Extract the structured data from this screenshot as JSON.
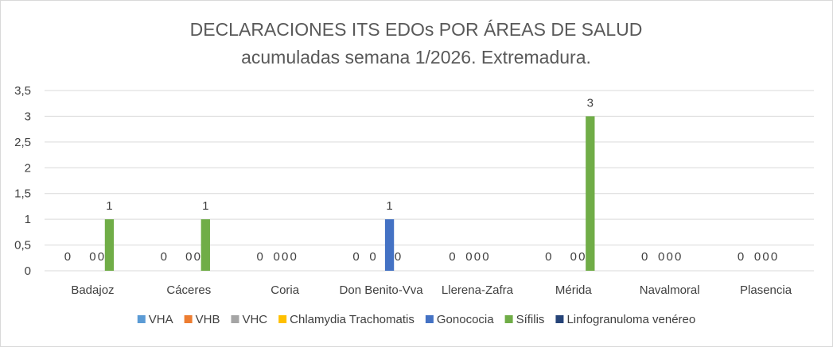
{
  "chart_data": {
    "type": "bar",
    "title": "DECLARACIONES ITS EDOs POR ÁREAS DE SALUD",
    "subtitle": "acumuladas semana 1/2026. Extremadura.",
    "categories": [
      "Badajoz",
      "Cáceres",
      "Coria",
      "Don Benito-Vva",
      "Llerena-Zafra",
      "Mérida",
      "Navalmoral",
      "Plasencia"
    ],
    "ylim": [
      0,
      3.5
    ],
    "yticks": [
      "0",
      "0,5",
      "1",
      "1,5",
      "2",
      "2,5",
      "3",
      "3,5"
    ],
    "grid": true,
    "legend_position": "bottom",
    "series": [
      {
        "name": "VHA",
        "color": "#5b9bd5",
        "values": [
          0,
          0,
          0,
          0,
          0,
          0,
          0,
          0
        ],
        "labels": [
          "0",
          "0",
          "0",
          "0",
          "0",
          "0",
          "0",
          "0"
        ]
      },
      {
        "name": "VHB",
        "color": "#ed7d31",
        "values": [
          0,
          0,
          0,
          0,
          0,
          0,
          0,
          0
        ],
        "labels": [
          "",
          "",
          "",
          "",
          "",
          "",
          "",
          ""
        ]
      },
      {
        "name": "VHC",
        "color": "#a5a5a5",
        "values": [
          0,
          0,
          0,
          0,
          0,
          0,
          0,
          0
        ],
        "labels": [
          "",
          "",
          "0",
          "0",
          "0",
          "",
          "0",
          "0"
        ]
      },
      {
        "name": "Chlamydia Trachomatis",
        "color": "#ffc000",
        "values": [
          0,
          0,
          0,
          0,
          0,
          0,
          0,
          0
        ],
        "labels": [
          "0",
          "0",
          "0",
          "",
          "0",
          "0",
          "0",
          "0"
        ]
      },
      {
        "name": "Gonococia",
        "color": "#4472c4",
        "values": [
          0,
          0,
          0,
          1,
          0,
          0,
          0,
          0
        ],
        "labels": [
          "0",
          "0",
          "0",
          "1",
          "0",
          "0",
          "0",
          "0"
        ]
      },
      {
        "name": "Sífilis",
        "color": "#70ad47",
        "values": [
          1,
          1,
          0,
          0,
          0,
          3,
          0,
          0
        ],
        "labels": [
          "1",
          "1",
          "",
          "0",
          "",
          "3",
          "",
          ""
        ]
      },
      {
        "name": "Linfogranuloma venéreo",
        "color": "#264478",
        "values": [
          0,
          0,
          0,
          0,
          0,
          0,
          0,
          0
        ],
        "labels": [
          "",
          "",
          "",
          "",
          "",
          "",
          "",
          ""
        ]
      }
    ]
  }
}
